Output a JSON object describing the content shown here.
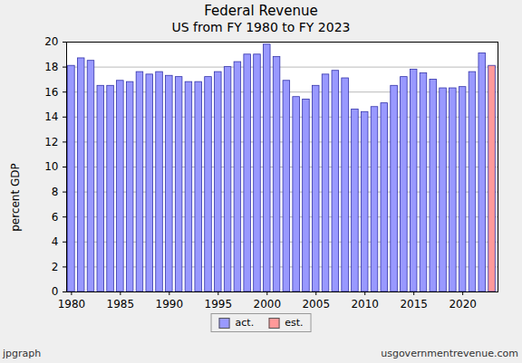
{
  "chart_data": {
    "type": "bar",
    "title": "Federal  Revenue",
    "subtitle": "US from FY 1980 to FY 2023",
    "y_label": "percent GDP",
    "annotations": [
      "jpgraph",
      "usgovernmentrevenue.com"
    ],
    "x": [
      1980,
      1981,
      1982,
      1983,
      1984,
      1985,
      1986,
      1987,
      1988,
      1989,
      1990,
      1991,
      1992,
      1993,
      1994,
      1995,
      1996,
      1997,
      1998,
      1999,
      2000,
      2001,
      2002,
      2003,
      2004,
      2005,
      2006,
      2007,
      2008,
      2009,
      2010,
      2011,
      2012,
      2013,
      2014,
      2015,
      2016,
      2017,
      2018,
      2019,
      2020,
      2021,
      2022,
      2023
    ],
    "series": [
      {
        "name": "act.",
        "color": "#9999ff",
        "values": [
          18.1,
          18.7,
          18.5,
          16.5,
          16.5,
          16.9,
          16.8,
          17.6,
          17.4,
          17.6,
          17.3,
          17.2,
          16.8,
          16.8,
          17.2,
          17.6,
          18.0,
          18.4,
          19.0,
          19.0,
          19.8,
          18.8,
          16.9,
          15.6,
          15.4,
          16.5,
          17.4,
          17.7,
          17.1,
          14.6,
          14.4,
          14.8,
          15.1,
          16.5,
          17.2,
          17.8,
          17.5,
          17.0,
          16.3,
          16.3,
          16.4,
          17.6,
          19.1,
          null
        ]
      },
      {
        "name": "est.",
        "color": "#ff9999",
        "values": [
          null,
          null,
          null,
          null,
          null,
          null,
          null,
          null,
          null,
          null,
          null,
          null,
          null,
          null,
          null,
          null,
          null,
          null,
          null,
          null,
          null,
          null,
          null,
          null,
          null,
          null,
          null,
          null,
          null,
          null,
          null,
          null,
          null,
          null,
          null,
          null,
          null,
          null,
          null,
          null,
          null,
          null,
          null,
          18.1
        ]
      }
    ],
    "xlim": [
      1979.5,
      2023.6
    ],
    "xticks": [
      1980,
      1985,
      1990,
      1995,
      2000,
      2005,
      2010,
      2015,
      2020
    ],
    "ylim": [
      0,
      20
    ],
    "yticks": [
      0,
      2,
      4,
      6,
      8,
      10,
      12,
      14,
      16,
      18,
      20
    ],
    "grid": true,
    "legend": "bottom"
  }
}
